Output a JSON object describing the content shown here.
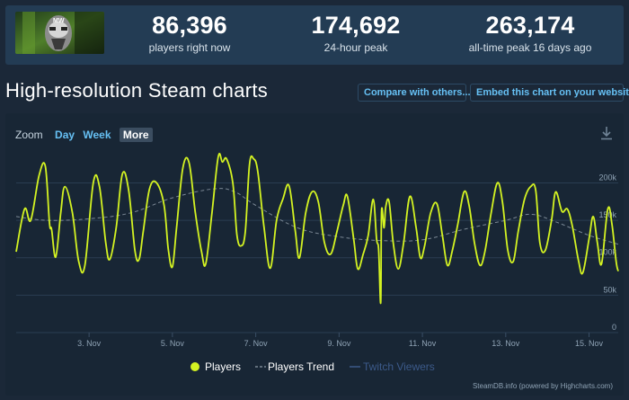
{
  "stats": {
    "current": {
      "value": "86,396",
      "label": "players right now"
    },
    "peak24": {
      "value": "174,692",
      "label": "24-hour peak"
    },
    "alltime": {
      "value": "263,174",
      "label": "all-time peak 16 days ago"
    }
  },
  "title": "High-resolution Steam charts",
  "buttons": {
    "compare": "Compare with others...",
    "embed": "Embed this chart on your website"
  },
  "zoom": {
    "label": "Zoom",
    "options": [
      "Day",
      "Week",
      "More"
    ],
    "selected": "More"
  },
  "credit": "SteamDB.info (powered by Highcharts.com)",
  "icons": {
    "download": "download-icon"
  },
  "colors": {
    "players": "#d4f322",
    "trend": "#7a8794",
    "twitch": "#3c5a8a",
    "accent": "#66c0f4",
    "background": "#1b2838"
  },
  "chart_data": {
    "type": "line",
    "x_tick_labels": [
      "3. Nov",
      "5. Nov",
      "7. Nov",
      "9. Nov",
      "11. Nov",
      "13. Nov",
      "15. Nov"
    ],
    "y_tick_labels": [
      "0",
      "50k",
      "100k",
      "150k",
      "200k"
    ],
    "ylim": [
      0,
      245000
    ],
    "xlim": [
      1.25,
      15.7
    ],
    "grid": true,
    "legend_position": "bottom",
    "series": [
      {
        "name": "Players",
        "color": "#d4f322",
        "style": "solid",
        "points": [
          [
            1.25,
            108000
          ],
          [
            1.45,
            165000
          ],
          [
            1.6,
            150000
          ],
          [
            1.8,
            210000
          ],
          [
            1.95,
            222000
          ],
          [
            2.05,
            146000
          ],
          [
            2.1,
            138000
          ],
          [
            2.2,
            101000
          ],
          [
            2.32,
            160000
          ],
          [
            2.42,
            195000
          ],
          [
            2.6,
            160000
          ],
          [
            2.75,
            95000
          ],
          [
            2.9,
            90000
          ],
          [
            3.1,
            200000
          ],
          [
            3.25,
            195000
          ],
          [
            3.4,
            120000
          ],
          [
            3.5,
            98000
          ],
          [
            3.65,
            140000
          ],
          [
            3.8,
            212000
          ],
          [
            3.95,
            190000
          ],
          [
            4.1,
            110000
          ],
          [
            4.2,
            98000
          ],
          [
            4.3,
            135000
          ],
          [
            4.45,
            192000
          ],
          [
            4.62,
            200000
          ],
          [
            4.8,
            170000
          ],
          [
            4.9,
            112000
          ],
          [
            5.0,
            88000
          ],
          [
            5.1,
            140000
          ],
          [
            5.25,
            220000
          ],
          [
            5.4,
            227000
          ],
          [
            5.55,
            160000
          ],
          [
            5.7,
            108000
          ],
          [
            5.8,
            92000
          ],
          [
            5.95,
            160000
          ],
          [
            6.1,
            235000
          ],
          [
            6.2,
            228000
          ],
          [
            6.3,
            232000
          ],
          [
            6.45,
            200000
          ],
          [
            6.55,
            130000
          ],
          [
            6.65,
            116000
          ],
          [
            6.75,
            135000
          ],
          [
            6.85,
            225000
          ],
          [
            6.95,
            232000
          ],
          [
            7.05,
            215000
          ],
          [
            7.2,
            140000
          ],
          [
            7.35,
            86000
          ],
          [
            7.5,
            150000
          ],
          [
            7.65,
            178000
          ],
          [
            7.8,
            196000
          ],
          [
            7.95,
            135000
          ],
          [
            8.05,
            100000
          ],
          [
            8.2,
            160000
          ],
          [
            8.35,
            188000
          ],
          [
            8.5,
            175000
          ],
          [
            8.65,
            120000
          ],
          [
            8.8,
            105000
          ],
          [
            8.95,
            135000
          ],
          [
            9.1,
            170000
          ],
          [
            9.2,
            182000
          ],
          [
            9.35,
            125000
          ],
          [
            9.45,
            85000
          ],
          [
            9.58,
            105000
          ],
          [
            9.7,
            130000
          ],
          [
            9.82,
            178000
          ],
          [
            9.9,
            125000
          ],
          [
            9.95,
            110000
          ],
          [
            10.0,
            40000
          ],
          [
            10.02,
            162000
          ],
          [
            10.08,
            140000
          ],
          [
            10.12,
            168000
          ],
          [
            10.2,
            175000
          ],
          [
            10.3,
            120000
          ],
          [
            10.42,
            85000
          ],
          [
            10.55,
            120000
          ],
          [
            10.7,
            182000
          ],
          [
            10.85,
            140000
          ],
          [
            10.95,
            100000
          ],
          [
            11.05,
            115000
          ],
          [
            11.2,
            160000
          ],
          [
            11.35,
            172000
          ],
          [
            11.48,
            130000
          ],
          [
            11.6,
            90000
          ],
          [
            11.72,
            110000
          ],
          [
            11.85,
            145000
          ],
          [
            12.0,
            188000
          ],
          [
            12.12,
            170000
          ],
          [
            12.25,
            120000
          ],
          [
            12.38,
            90000
          ],
          [
            12.5,
            108000
          ],
          [
            12.65,
            160000
          ],
          [
            12.8,
            200000
          ],
          [
            12.92,
            175000
          ],
          [
            13.05,
            110000
          ],
          [
            13.18,
            95000
          ],
          [
            13.3,
            135000
          ],
          [
            13.45,
            178000
          ],
          [
            13.6,
            195000
          ],
          [
            13.72,
            190000
          ],
          [
            13.82,
            120000
          ],
          [
            13.95,
            110000
          ],
          [
            14.1,
            150000
          ],
          [
            14.2,
            188000
          ],
          [
            14.35,
            162000
          ],
          [
            14.48,
            165000
          ],
          [
            14.6,
            142000
          ],
          [
            14.75,
            95000
          ],
          [
            14.85,
            80000
          ],
          [
            15.0,
            125000
          ],
          [
            15.1,
            155000
          ],
          [
            15.2,
            120000
          ],
          [
            15.3,
            92000
          ],
          [
            15.45,
            165000
          ],
          [
            15.55,
            145000
          ],
          [
            15.65,
            95000
          ],
          [
            15.7,
            82000
          ]
        ]
      },
      {
        "name": "Players Trend",
        "color": "#7a8794",
        "style": "dashed",
        "points": [
          [
            1.25,
            155000
          ],
          [
            2.0,
            150000
          ],
          [
            3.0,
            152000
          ],
          [
            4.0,
            160000
          ],
          [
            5.0,
            180000
          ],
          [
            6.0,
            192000
          ],
          [
            6.5,
            188000
          ],
          [
            7.0,
            170000
          ],
          [
            8.0,
            140000
          ],
          [
            9.0,
            128000
          ],
          [
            10.0,
            123000
          ],
          [
            11.0,
            124000
          ],
          [
            12.0,
            138000
          ],
          [
            13.0,
            150000
          ],
          [
            13.6,
            158000
          ],
          [
            14.2,
            148000
          ],
          [
            15.0,
            130000
          ],
          [
            15.7,
            118000
          ]
        ]
      },
      {
        "name": "Twitch Viewers",
        "color": "#3c5a8a",
        "style": "solid",
        "points": []
      }
    ]
  }
}
